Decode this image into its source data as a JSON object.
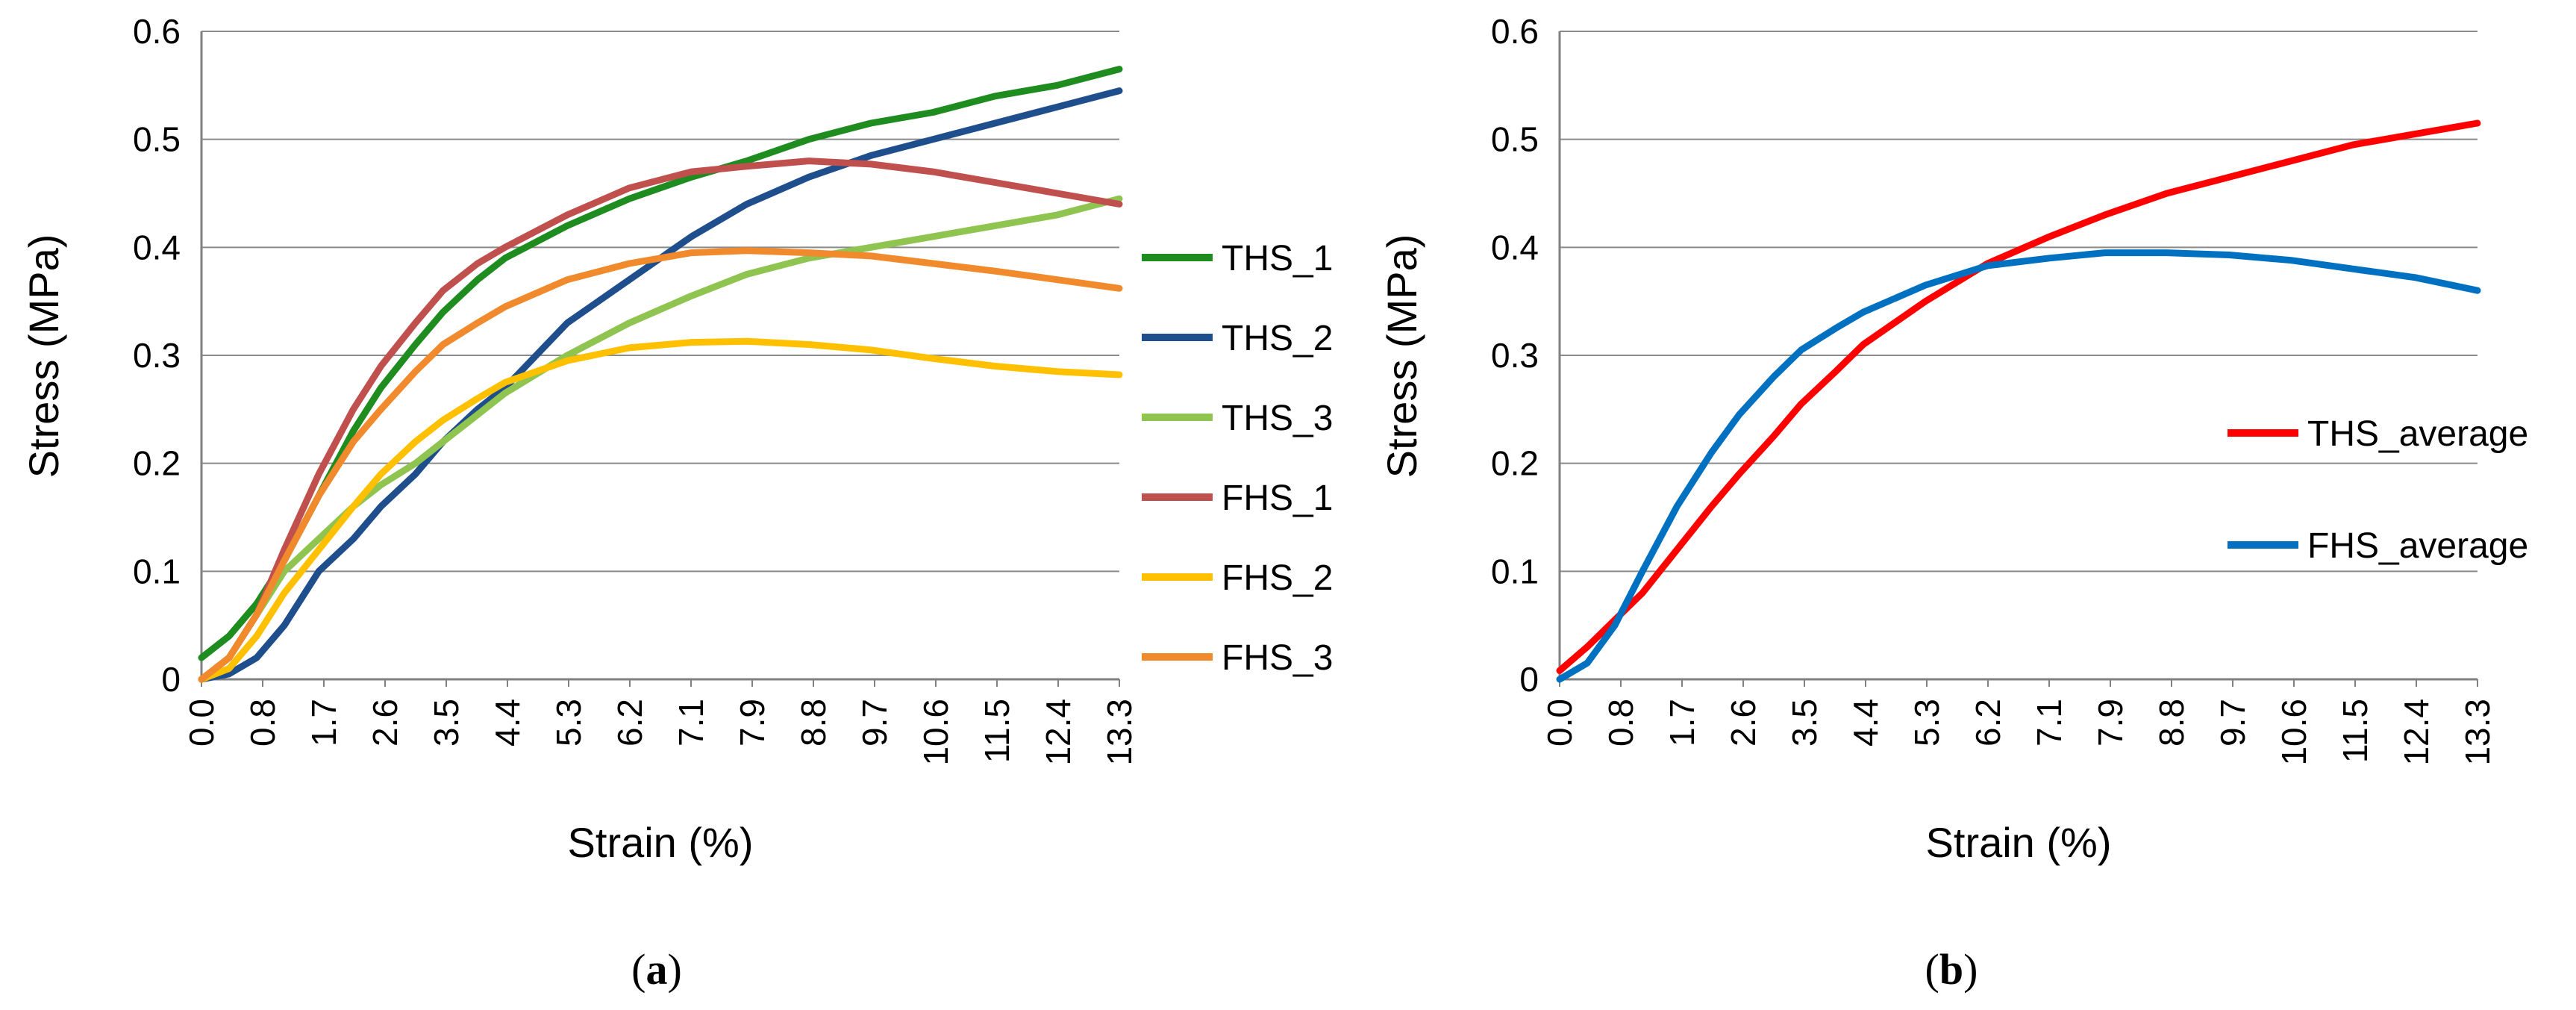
{
  "chart_data": [
    {
      "type": "line",
      "panel_label": {
        "open": "(",
        "letter": "a",
        "close": ")"
      },
      "xlabel": "Strain (%)",
      "ylabel": "Stress (MPa)",
      "xlim": [
        0,
        13.3
      ],
      "ylim": [
        0,
        0.6
      ],
      "x_ticks": [
        "0.0",
        "0.8",
        "1.7",
        "2.6",
        "3.5",
        "4.4",
        "5.3",
        "6.2",
        "7.1",
        "7.9",
        "8.8",
        "9.7",
        "10.6",
        "11.5",
        "12.4",
        "13.3"
      ],
      "y_ticks": [
        "0",
        "0.1",
        "0.2",
        "0.3",
        "0.4",
        "0.5",
        "0.6"
      ],
      "grid": "horizontal",
      "legend_position": "right",
      "series": [
        {
          "name": "THS_1",
          "color": "#1e8c1e",
          "x": [
            0,
            0.4,
            0.8,
            1.2,
            1.7,
            2.2,
            2.6,
            3.1,
            3.5,
            4.0,
            4.4,
            5.3,
            6.2,
            7.1,
            7.9,
            8.8,
            9.7,
            10.6,
            11.5,
            12.4,
            13.3
          ],
          "y": [
            0.02,
            0.04,
            0.07,
            0.11,
            0.17,
            0.23,
            0.27,
            0.31,
            0.34,
            0.37,
            0.39,
            0.42,
            0.445,
            0.465,
            0.48,
            0.5,
            0.515,
            0.525,
            0.54,
            0.55,
            0.565
          ]
        },
        {
          "name": "THS_2",
          "color": "#1f4e8c",
          "x": [
            0,
            0.4,
            0.8,
            1.2,
            1.7,
            2.2,
            2.6,
            3.1,
            3.5,
            4.0,
            4.4,
            5.3,
            6.2,
            7.1,
            7.9,
            8.8,
            9.7,
            10.6,
            11.5,
            12.4,
            13.3
          ],
          "y": [
            0.0,
            0.005,
            0.02,
            0.05,
            0.1,
            0.13,
            0.16,
            0.19,
            0.22,
            0.25,
            0.27,
            0.33,
            0.37,
            0.41,
            0.44,
            0.465,
            0.485,
            0.5,
            0.515,
            0.53,
            0.545
          ]
        },
        {
          "name": "THS_3",
          "color": "#8ec44f",
          "x": [
            0,
            0.4,
            0.8,
            1.2,
            1.7,
            2.2,
            2.6,
            3.1,
            3.5,
            4.0,
            4.4,
            5.3,
            6.2,
            7.1,
            7.9,
            8.8,
            9.7,
            10.6,
            11.5,
            12.4,
            13.3
          ],
          "y": [
            0.0,
            0.02,
            0.06,
            0.1,
            0.13,
            0.16,
            0.18,
            0.2,
            0.22,
            0.245,
            0.265,
            0.3,
            0.33,
            0.355,
            0.375,
            0.39,
            0.4,
            0.41,
            0.42,
            0.43,
            0.445
          ]
        },
        {
          "name": "FHS_1",
          "color": "#c0504d",
          "x": [
            0,
            0.4,
            0.8,
            1.2,
            1.7,
            2.2,
            2.6,
            3.1,
            3.5,
            4.0,
            4.4,
            5.3,
            6.2,
            7.1,
            7.9,
            8.8,
            9.7,
            10.6,
            11.5,
            12.4,
            13.3
          ],
          "y": [
            0.0,
            0.02,
            0.06,
            0.12,
            0.19,
            0.25,
            0.29,
            0.33,
            0.36,
            0.385,
            0.4,
            0.43,
            0.455,
            0.47,
            0.475,
            0.48,
            0.477,
            0.47,
            0.46,
            0.45,
            0.44
          ]
        },
        {
          "name": "FHS_2",
          "color": "#ffc000",
          "x": [
            0,
            0.4,
            0.8,
            1.2,
            1.7,
            2.2,
            2.6,
            3.1,
            3.5,
            4.0,
            4.4,
            5.3,
            6.2,
            7.1,
            7.9,
            8.8,
            9.7,
            10.6,
            11.5,
            12.4,
            13.3
          ],
          "y": [
            0.0,
            0.01,
            0.04,
            0.08,
            0.12,
            0.16,
            0.19,
            0.22,
            0.24,
            0.26,
            0.275,
            0.295,
            0.307,
            0.312,
            0.313,
            0.31,
            0.305,
            0.297,
            0.29,
            0.285,
            0.282
          ]
        },
        {
          "name": "FHS_3",
          "color": "#f08a2c",
          "x": [
            0,
            0.4,
            0.8,
            1.2,
            1.7,
            2.2,
            2.6,
            3.1,
            3.5,
            4.0,
            4.4,
            5.3,
            6.2,
            7.1,
            7.9,
            8.8,
            9.7,
            10.6,
            11.5,
            12.4,
            13.3
          ],
          "y": [
            0.0,
            0.02,
            0.06,
            0.11,
            0.17,
            0.22,
            0.25,
            0.285,
            0.31,
            0.33,
            0.345,
            0.37,
            0.385,
            0.395,
            0.397,
            0.395,
            0.392,
            0.385,
            0.378,
            0.37,
            0.362
          ]
        }
      ]
    },
    {
      "type": "line",
      "panel_label": {
        "open": "(",
        "letter": "b",
        "close": ")"
      },
      "xlabel": "Strain (%)",
      "ylabel": "Stress (MPa)",
      "xlim": [
        0,
        13.3
      ],
      "ylim": [
        0,
        0.6
      ],
      "x_ticks": [
        "0.0",
        "0.8",
        "1.7",
        "2.6",
        "3.5",
        "4.4",
        "5.3",
        "6.2",
        "7.1",
        "7.9",
        "8.8",
        "9.7",
        "10.6",
        "11.5",
        "12.4",
        "13.3"
      ],
      "y_ticks": [
        "0",
        "0.1",
        "0.2",
        "0.3",
        "0.4",
        "0.5",
        "0.6"
      ],
      "grid": "horizontal",
      "legend_position": "right",
      "series": [
        {
          "name": "THS_average",
          "color": "#ff0000",
          "x": [
            0,
            0.4,
            0.8,
            1.2,
            1.7,
            2.2,
            2.6,
            3.1,
            3.5,
            4.0,
            4.4,
            5.3,
            6.2,
            7.1,
            7.9,
            8.8,
            9.7,
            10.6,
            11.5,
            12.4,
            13.3
          ],
          "y": [
            0.008,
            0.03,
            0.055,
            0.08,
            0.12,
            0.16,
            0.19,
            0.225,
            0.255,
            0.285,
            0.31,
            0.35,
            0.385,
            0.41,
            0.43,
            0.45,
            0.465,
            0.48,
            0.495,
            0.505,
            0.515
          ]
        },
        {
          "name": "FHS_average",
          "color": "#0070c0",
          "x": [
            0,
            0.4,
            0.8,
            1.2,
            1.7,
            2.2,
            2.6,
            3.1,
            3.5,
            4.0,
            4.4,
            5.3,
            6.2,
            7.1,
            7.9,
            8.8,
            9.7,
            10.6,
            11.5,
            12.4,
            13.3
          ],
          "y": [
            0.0,
            0.015,
            0.05,
            0.1,
            0.16,
            0.21,
            0.245,
            0.28,
            0.305,
            0.325,
            0.34,
            0.365,
            0.383,
            0.39,
            0.395,
            0.395,
            0.393,
            0.388,
            0.38,
            0.372,
            0.36
          ]
        }
      ]
    }
  ]
}
